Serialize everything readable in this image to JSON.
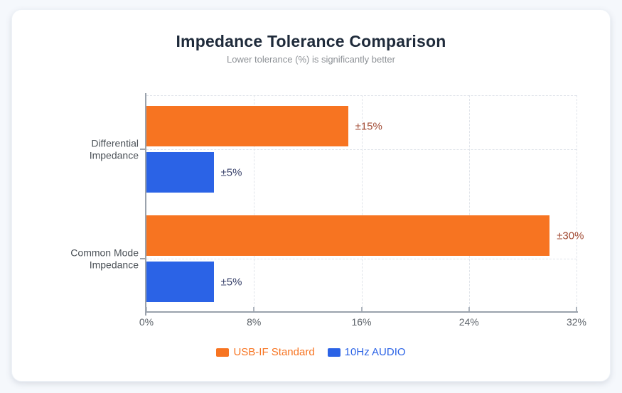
{
  "page": {
    "background": "#f5f8fc",
    "card_background": "#ffffff"
  },
  "chart_data": {
    "type": "bar",
    "orientation": "horizontal",
    "title": "Impedance Tolerance Comparison",
    "subtitle": "Lower tolerance (%) is significantly better",
    "categories": [
      "Differential Impedance",
      "Common Mode Impedance"
    ],
    "series": [
      {
        "name": "USB-IF Standard",
        "color": "#f77421",
        "data_label_color": "#a14932",
        "values": [
          15,
          30
        ],
        "data_labels": [
          "±15%",
          "±30%"
        ]
      },
      {
        "name": "10Hz AUDIO",
        "color": "#2b63e6",
        "data_label_color": "#39426b",
        "values": [
          5,
          5
        ],
        "data_labels": [
          "±5%",
          "±5%"
        ]
      }
    ],
    "xlim": [
      0,
      32
    ],
    "xticks": [
      {
        "value": 0,
        "label": "0%"
      },
      {
        "value": 8,
        "label": "8%"
      },
      {
        "value": 16,
        "label": "16%"
      },
      {
        "value": 24,
        "label": "24%"
      },
      {
        "value": 32,
        "label": "32%"
      }
    ],
    "grid": {
      "style": "dashed",
      "color": "#e0e4ea",
      "vertical": true,
      "horizontal_at_category_centers": true
    },
    "legend_position": "bottom"
  }
}
